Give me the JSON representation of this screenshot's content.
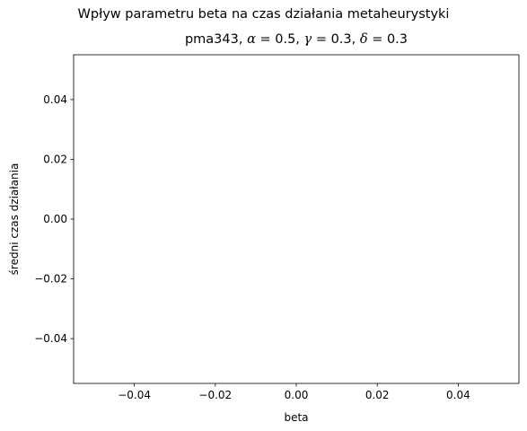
{
  "chart_data": {
    "type": "line",
    "suptitle": "Wpływ parametru beta na czas działania metaheurystyki",
    "title_parts": {
      "instance": "pma343,",
      "alpha": "= 0.5,",
      "gamma": "= 0.3,",
      "delta": "= 0.3"
    },
    "xlabel": "beta",
    "ylabel": "średni czas działania",
    "xlim": [
      -0.055,
      0.055
    ],
    "ylim": [
      -0.055,
      0.055
    ],
    "xticks": [
      -0.04,
      -0.02,
      0.0,
      0.02,
      0.04
    ],
    "yticks": [
      -0.04,
      -0.02,
      0.0,
      0.02,
      0.04
    ],
    "xtick_labels": [
      "−0.04",
      "−0.02",
      "0.00",
      "0.02",
      "0.04"
    ],
    "ytick_labels": [
      "−0.04",
      "−0.02",
      "0.00",
      "0.02",
      "0.04"
    ],
    "series": [],
    "grid": false
  }
}
